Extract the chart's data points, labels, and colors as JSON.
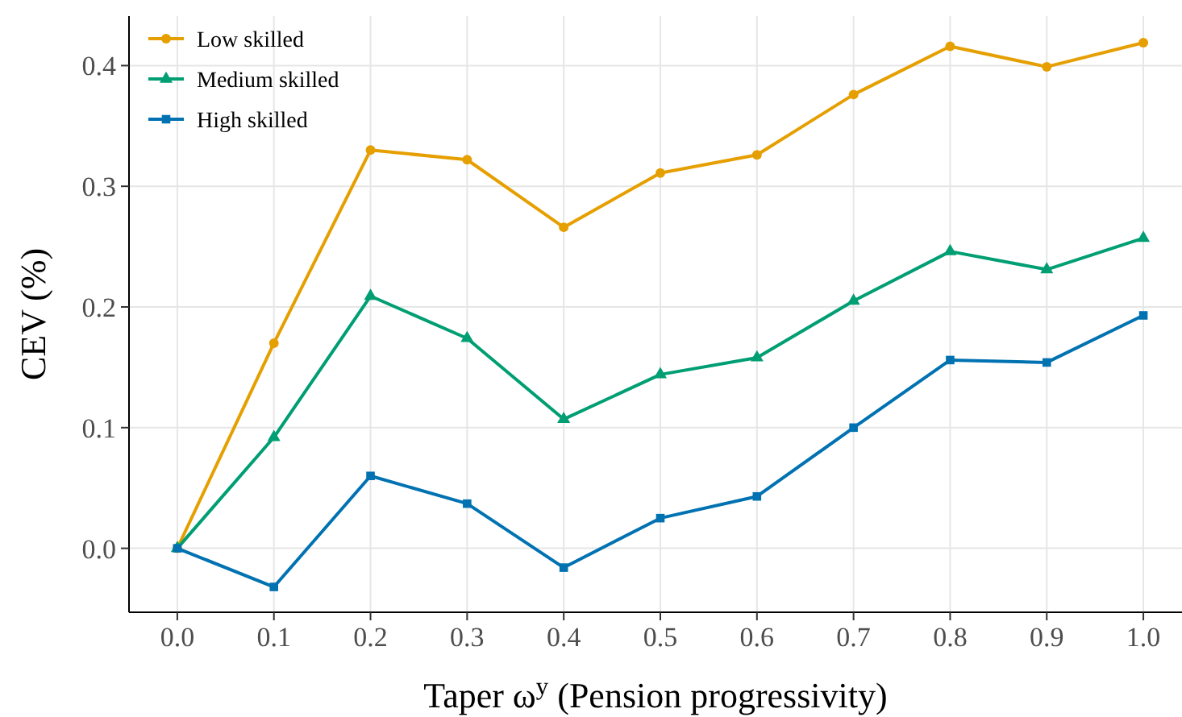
{
  "chart_data": {
    "type": "line",
    "xlabel": "Taper ω$^{y}$ (Pension progressivity)",
    "ylabel": "CEV (%)",
    "x": [
      0,
      0.1,
      0.2,
      0.3,
      0.4,
      0.5,
      0.6,
      0.7,
      0.8,
      0.9,
      1.0
    ],
    "series": [
      {
        "name": "Low skilled",
        "color": "#e69f00",
        "marker": "circle",
        "values": [
          0,
          0.17,
          0.33,
          0.322,
          0.266,
          0.311,
          0.326,
          0.376,
          0.416,
          0.399,
          0.419
        ]
      },
      {
        "name": "Medium skilled",
        "color": "#009e73",
        "marker": "triangle",
        "values": [
          0,
          0.092,
          0.209,
          0.174,
          0.107,
          0.144,
          0.158,
          0.205,
          0.246,
          0.231,
          0.257
        ]
      },
      {
        "name": "High skilled",
        "color": "#0072b2",
        "marker": "square",
        "values": [
          0,
          -0.032,
          0.06,
          0.037,
          -0.016,
          0.025,
          0.043,
          0.1,
          0.156,
          0.154,
          0.193
        ]
      }
    ],
    "xlim": [
      -0.05,
      1.04
    ],
    "ylim": [
      -0.053,
      0.441
    ],
    "xticks": [
      {
        "value": 0,
        "label": "0.0"
      },
      0.1,
      0.2,
      0.3,
      0.4,
      0.5,
      0.6,
      0.7,
      0.8,
      0.9,
      {
        "value": 1,
        "label": "1.0"
      }
    ],
    "yticks": [
      {
        "value": 0,
        "label": "0.0"
      },
      0.1,
      0.2,
      0.3,
      0.4
    ],
    "grid": true,
    "legend": "top left",
    "line_style": "solid"
  }
}
